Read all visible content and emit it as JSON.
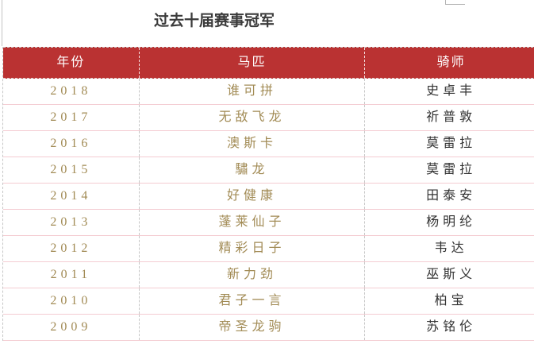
{
  "title": "过去十届赛事冠军",
  "colors": {
    "header_bg": "#ba3232",
    "header_text": "#ffffff",
    "accent_text": "#a28b55",
    "dark_text": "#3b3b3b",
    "dark_text2": "#333333",
    "row_line": "#f4ccd2",
    "gridline": "#c6c6c6"
  },
  "table": {
    "columns": [
      {
        "key": "year",
        "label": "年份"
      },
      {
        "key": "horse",
        "label": "马匹"
      },
      {
        "key": "jockey",
        "label": "骑师"
      }
    ],
    "rows": [
      {
        "year": "2018",
        "horse": "谁可拼",
        "jockey": "史卓丰"
      },
      {
        "year": "2017",
        "horse": "无敌飞龙",
        "jockey": "祈普敦"
      },
      {
        "year": "2016",
        "horse": "澳斯卡",
        "jockey": "莫雷拉"
      },
      {
        "year": "2015",
        "horse": "驌龙",
        "jockey": "莫雷拉"
      },
      {
        "year": "2014",
        "horse": "好健康",
        "jockey": "田泰安"
      },
      {
        "year": "2013",
        "horse": "蓬莱仙子",
        "jockey": "杨明纶"
      },
      {
        "year": "2012",
        "horse": "精彩日子",
        "jockey": "韦达"
      },
      {
        "year": "2011",
        "horse": "新力劲",
        "jockey": "巫斯义"
      },
      {
        "year": "2010",
        "horse": "君子一言",
        "jockey": "柏宝"
      },
      {
        "year": "2009",
        "horse": "帝圣龙驹",
        "jockey": "苏铭伦"
      }
    ]
  }
}
